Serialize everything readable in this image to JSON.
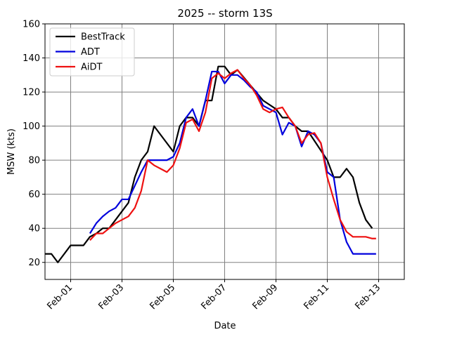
{
  "chart_data": {
    "type": "line",
    "title": "2025 -- storm 13S",
    "xlabel": "Date",
    "ylabel": "MSW (kts)",
    "xlim": [
      0,
      14
    ],
    "ylim": [
      10,
      160
    ],
    "xticks": [
      {
        "value": 1,
        "label": "Feb-01"
      },
      {
        "value": 3,
        "label": "Feb-03"
      },
      {
        "value": 5,
        "label": "Feb-05"
      },
      {
        "value": 7,
        "label": "Feb-07"
      },
      {
        "value": 9,
        "label": "Feb-09"
      },
      {
        "value": 11,
        "label": "Feb-11"
      },
      {
        "value": 13,
        "label": "Feb-13"
      }
    ],
    "yticks": [
      20,
      40,
      60,
      80,
      100,
      120,
      140,
      160
    ],
    "grid": true,
    "legend": "upper left",
    "series": [
      {
        "name": "BestTrack",
        "color": "#000000",
        "x": [
          0,
          0.25,
          0.5,
          1,
          1.5,
          1.75,
          2,
          2.25,
          2.5,
          3,
          3.25,
          3.5,
          3.75,
          4,
          4.25,
          5,
          5.25,
          5.5,
          5.75,
          6,
          6.25,
          6.5,
          6.75,
          7,
          7.25,
          7.5,
          8.5,
          9,
          9.25,
          9.5,
          9.75,
          10,
          10.25,
          11,
          11.25,
          11.5,
          11.75,
          12,
          12.25,
          12.5,
          12.75
        ],
        "values": [
          25,
          25,
          20,
          30,
          30,
          35,
          37,
          40,
          40,
          50,
          55,
          70,
          80,
          85,
          100,
          85,
          100,
          105,
          105,
          100,
          115,
          115,
          135,
          135,
          130,
          133,
          115,
          110,
          105,
          105,
          100,
          97,
          97,
          80,
          70,
          70,
          75,
          70,
          55,
          45,
          40
        ]
      },
      {
        "name": "ADT",
        "color": "#0000dd",
        "x": [
          1.75,
          2,
          2.25,
          2.5,
          2.75,
          3,
          3.25,
          3.5,
          3.75,
          4,
          4.25,
          4.5,
          4.75,
          5,
          5.25,
          5.5,
          5.75,
          6,
          6.25,
          6.5,
          6.75,
          7,
          7.25,
          7.5,
          7.75,
          8,
          8.25,
          8.5,
          8.75,
          9,
          9.25,
          9.5,
          9.75,
          10,
          10.25,
          10.5,
          10.75,
          11,
          11.25,
          11.5,
          11.75,
          12,
          12.25,
          12.5,
          12.75,
          12.9
        ],
        "values": [
          37,
          43,
          47,
          50,
          52,
          57,
          57,
          65,
          73,
          80,
          80,
          80,
          80,
          82,
          90,
          105,
          110,
          100,
          115,
          132,
          132,
          125,
          130,
          130,
          127,
          123,
          120,
          112,
          110,
          108,
          95,
          102,
          100,
          88,
          97,
          95,
          90,
          73,
          70,
          45,
          32,
          25,
          25,
          25,
          25,
          25
        ]
      },
      {
        "name": "AiDT",
        "color": "#ee1111",
        "x": [
          1.75,
          2,
          2.25,
          2.5,
          2.75,
          3,
          3.25,
          3.5,
          3.75,
          4,
          4.25,
          4.5,
          4.75,
          5,
          5.25,
          5.5,
          5.75,
          6,
          6.25,
          6.5,
          6.75,
          7,
          7.25,
          7.5,
          7.75,
          8,
          8.25,
          8.5,
          8.75,
          9,
          9.25,
          9.5,
          9.75,
          10,
          10.25,
          10.5,
          10.75,
          11,
          11.25,
          11.5,
          11.75,
          12,
          12.25,
          12.5,
          12.75,
          12.9
        ],
        "values": [
          33,
          37,
          37,
          40,
          43,
          45,
          47,
          52,
          62,
          80,
          77,
          75,
          73,
          77,
          87,
          102,
          104,
          97,
          108,
          128,
          131,
          128,
          131,
          133,
          128,
          124,
          118,
          110,
          108,
          110,
          111,
          105,
          100,
          90,
          95,
          96,
          90,
          70,
          57,
          45,
          38,
          35,
          35,
          35,
          34,
          34
        ]
      }
    ]
  }
}
